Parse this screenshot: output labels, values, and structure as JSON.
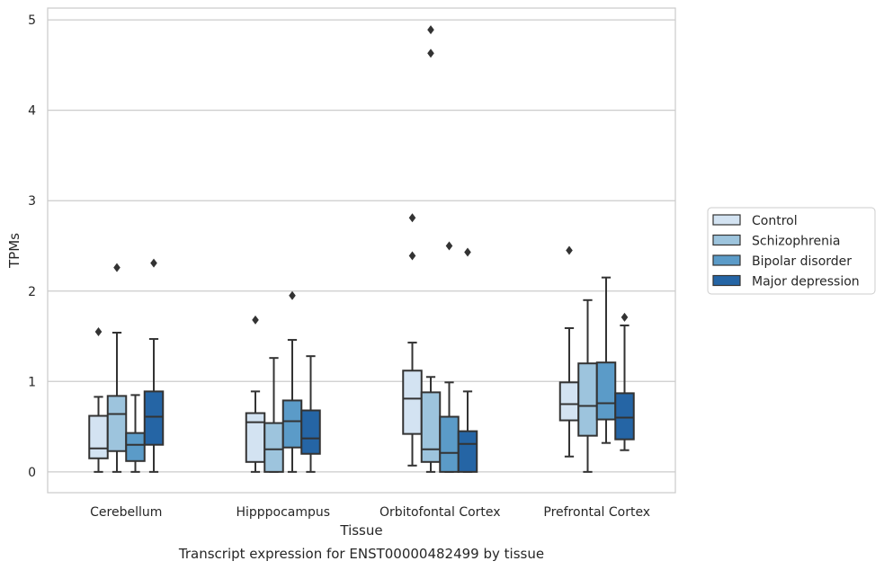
{
  "chart_data": {
    "type": "boxplot",
    "title": "",
    "xlabel": "Tissue",
    "ylabel": "TPMs",
    "caption": "Transcript expression for ENST00000482499 by tissue",
    "ylim": [
      -0.23,
      5.13
    ],
    "yticks": [
      "0",
      "1",
      "2",
      "3",
      "4",
      "5"
    ],
    "grid": "horizontal",
    "legend_position": "right",
    "categories": [
      "Cerebellum",
      "Hipppocampus",
      "Orbitofontal Cortex",
      "Prefrontal Cortex"
    ],
    "series": [
      {
        "name": "Control",
        "color": "#d3e3f2",
        "boxes": [
          {
            "whislo": 0.0,
            "q1": 0.15,
            "med": 0.26,
            "q3": 0.62,
            "whishi": 0.83,
            "fliers": [
              1.55
            ]
          },
          {
            "whislo": 0.0,
            "q1": 0.11,
            "med": 0.55,
            "q3": 0.65,
            "whishi": 0.89,
            "fliers": [
              1.68
            ]
          },
          {
            "whislo": 0.07,
            "q1": 0.42,
            "med": 0.81,
            "q3": 1.12,
            "whishi": 1.43,
            "fliers": [
              2.39,
              2.81
            ]
          },
          {
            "whislo": 0.17,
            "q1": 0.57,
            "med": 0.75,
            "q3": 0.99,
            "whishi": 1.59,
            "fliers": [
              2.45
            ]
          }
        ]
      },
      {
        "name": "Schizophrenia",
        "color": "#9dc4dd",
        "boxes": [
          {
            "whislo": 0.0,
            "q1": 0.23,
            "med": 0.64,
            "q3": 0.84,
            "whishi": 1.54,
            "fliers": [
              2.26
            ]
          },
          {
            "whislo": 0.0,
            "q1": 0.0,
            "med": 0.25,
            "q3": 0.54,
            "whishi": 1.26,
            "fliers": []
          },
          {
            "whislo": 0.0,
            "q1": 0.11,
            "med": 0.25,
            "q3": 0.88,
            "whishi": 1.05,
            "fliers": [
              4.63,
              4.89
            ]
          },
          {
            "whislo": 0.0,
            "q1": 0.4,
            "med": 0.73,
            "q3": 1.2,
            "whishi": 1.9,
            "fliers": []
          }
        ]
      },
      {
        "name": "Bipolar disorder",
        "color": "#5b9bc8",
        "boxes": [
          {
            "whislo": 0.0,
            "q1": 0.12,
            "med": 0.3,
            "q3": 0.43,
            "whishi": 0.85,
            "fliers": []
          },
          {
            "whislo": 0.0,
            "q1": 0.27,
            "med": 0.56,
            "q3": 0.79,
            "whishi": 1.46,
            "fliers": [
              1.95
            ]
          },
          {
            "whislo": 0.0,
            "q1": 0.0,
            "med": 0.21,
            "q3": 0.61,
            "whishi": 0.99,
            "fliers": [
              2.5
            ]
          },
          {
            "whislo": 0.32,
            "q1": 0.58,
            "med": 0.76,
            "q3": 1.21,
            "whishi": 2.15,
            "fliers": []
          }
        ]
      },
      {
        "name": "Major depression",
        "color": "#2565a5",
        "boxes": [
          {
            "whislo": 0.0,
            "q1": 0.3,
            "med": 0.61,
            "q3": 0.89,
            "whishi": 1.47,
            "fliers": [
              2.31
            ]
          },
          {
            "whislo": 0.0,
            "q1": 0.2,
            "med": 0.37,
            "q3": 0.68,
            "whishi": 1.28,
            "fliers": []
          },
          {
            "whislo": 0.0,
            "q1": 0.0,
            "med": 0.31,
            "q3": 0.45,
            "whishi": 0.89,
            "fliers": [
              2.43
            ]
          },
          {
            "whislo": 0.24,
            "q1": 0.36,
            "med": 0.6,
            "q3": 0.87,
            "whishi": 1.62,
            "fliers": [
              1.71
            ]
          }
        ]
      }
    ]
  }
}
